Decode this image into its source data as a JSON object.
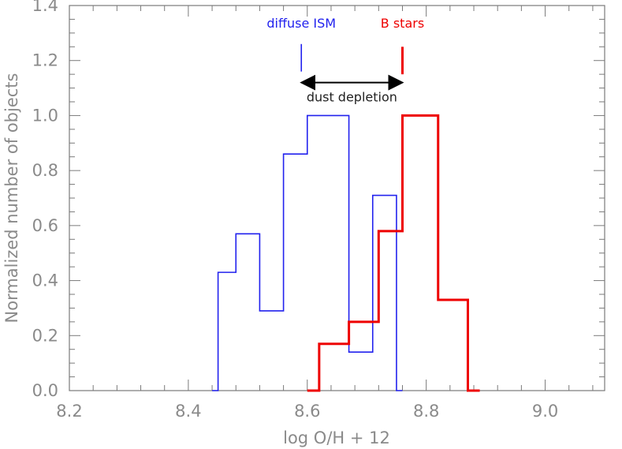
{
  "chart_data": {
    "type": "step-histogram",
    "xlabel": "log O/H + 12",
    "ylabel": "Normalized number of objects",
    "xlim": [
      8.2,
      9.1
    ],
    "ylim": [
      0.0,
      1.4
    ],
    "xticks": [
      8.2,
      8.4,
      8.6,
      8.8,
      9.0
    ],
    "xtick_labels": [
      "8.2",
      "8.4",
      "8.6",
      "8.8",
      "9.0"
    ],
    "yticks": [
      0.0,
      0.2,
      0.4,
      0.6,
      0.8,
      1.0,
      1.2,
      1.4
    ],
    "ytick_labels": [
      "0.0",
      "0.2",
      "0.4",
      "0.6",
      "0.8",
      "1.0",
      "1.2",
      "1.4"
    ],
    "grid": false,
    "series": [
      {
        "name": "diffuse ISM",
        "color": "#2222ee",
        "bin_edges": [
          8.44,
          8.45,
          8.48,
          8.52,
          8.56,
          8.6,
          8.64,
          8.67,
          8.71,
          8.75,
          8.76
        ],
        "values": [
          0.0,
          0.43,
          0.57,
          0.29,
          0.86,
          1.0,
          1.0,
          0.14,
          0.71,
          0.0
        ]
      },
      {
        "name": "B stars",
        "color": "#ee0000",
        "bin_edges": [
          8.6,
          8.62,
          8.67,
          8.72,
          8.76,
          8.82,
          8.87,
          8.89
        ],
        "values": [
          0.0,
          0.17,
          0.25,
          0.58,
          1.0,
          0.33,
          0.0
        ]
      }
    ],
    "markers": [
      {
        "name": "diffuse ISM",
        "x": 8.59,
        "y_range": [
          1.16,
          1.26
        ],
        "color": "#2222ee"
      },
      {
        "name": "B stars",
        "x": 8.76,
        "y_range": [
          1.15,
          1.25
        ],
        "color": "#ee0000"
      }
    ],
    "arrow": {
      "x_range": [
        8.59,
        8.76
      ],
      "y": 1.12,
      "label": "dust depletion",
      "color": "#000000"
    }
  }
}
